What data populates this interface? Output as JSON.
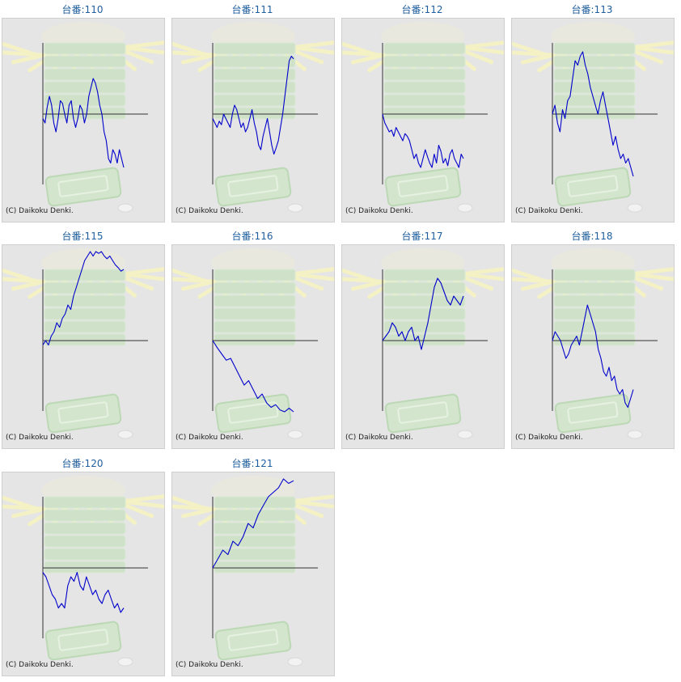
{
  "colors": {
    "title": "#1e5e9e",
    "line": "#0000cc",
    "axis": "#333333",
    "panel_bg": "#e5e5e5",
    "panel_border": "#cfcfcf"
  },
  "credit": "(C) Daikoku Denki.",
  "chart_data": [
    {
      "type": "line",
      "title": "台番:110",
      "ylim": [
        -100,
        100
      ],
      "values": [
        -5,
        -10,
        8,
        20,
        10,
        -10,
        -20,
        -5,
        15,
        12,
        0,
        -10,
        10,
        15,
        -5,
        -15,
        -5,
        10,
        5,
        -10,
        0,
        20,
        30,
        40,
        35,
        25,
        10,
        0,
        -20,
        -30,
        -50,
        -55,
        -40,
        -45,
        -55,
        -40,
        -50,
        -60
      ]
    },
    {
      "type": "line",
      "title": "台番:111",
      "ylim": [
        -100,
        100
      ],
      "values": [
        -5,
        -10,
        -15,
        -8,
        -12,
        0,
        -5,
        -10,
        -15,
        0,
        10,
        5,
        -5,
        -15,
        -10,
        -20,
        -15,
        -5,
        5,
        -10,
        -20,
        -35,
        -40,
        -25,
        -15,
        -5,
        -20,
        -35,
        -45,
        -38,
        -30,
        -15,
        0,
        20,
        40,
        60,
        65,
        62
      ]
    },
    {
      "type": "line",
      "title": "台番:112",
      "ylim": [
        -100,
        100
      ],
      "values": [
        0,
        -10,
        -15,
        -20,
        -18,
        -25,
        -15,
        -20,
        -25,
        -30,
        -22,
        -25,
        -30,
        -40,
        -50,
        -45,
        -55,
        -60,
        -50,
        -40,
        -48,
        -55,
        -60,
        -45,
        -55,
        -35,
        -42,
        -55,
        -50,
        -58,
        -45,
        -40,
        -50,
        -55,
        -60,
        -45,
        -50
      ]
    },
    {
      "type": "line",
      "title": "台番:113",
      "ylim": [
        -100,
        100
      ],
      "values": [
        0,
        10,
        -10,
        -20,
        5,
        -5,
        15,
        20,
        40,
        60,
        55,
        65,
        70,
        55,
        45,
        30,
        20,
        10,
        0,
        15,
        25,
        10,
        -5,
        -20,
        -35,
        -25,
        -40,
        -50,
        -45,
        -55,
        -50,
        -60,
        -70
      ]
    },
    {
      "type": "line",
      "title": "台番:115",
      "ylim": [
        -100,
        100
      ],
      "values": [
        -5,
        0,
        -5,
        5,
        10,
        20,
        15,
        25,
        30,
        40,
        35,
        50,
        60,
        70,
        80,
        90,
        95,
        100,
        95,
        100,
        98,
        100,
        95,
        92,
        95,
        90,
        85,
        82,
        78,
        80
      ]
    },
    {
      "type": "line",
      "title": "台番:116",
      "ylim": [
        -100,
        100
      ],
      "values": [
        0,
        -8,
        -15,
        -22,
        -20,
        -30,
        -40,
        -50,
        -45,
        -55,
        -65,
        -60,
        -70,
        -75,
        -72,
        -78,
        -80,
        -76,
        -80
      ]
    },
    {
      "type": "line",
      "title": "台番:117",
      "ylim": [
        -100,
        100
      ],
      "values": [
        0,
        5,
        10,
        20,
        15,
        5,
        10,
        0,
        10,
        15,
        0,
        5,
        -10,
        5,
        20,
        40,
        60,
        70,
        65,
        55,
        45,
        40,
        50,
        45,
        40,
        50
      ]
    },
    {
      "type": "line",
      "title": "台番:118",
      "ylim": [
        -100,
        100
      ],
      "values": [
        0,
        10,
        5,
        0,
        -10,
        -20,
        -15,
        -5,
        0,
        5,
        -5,
        10,
        25,
        40,
        30,
        20,
        10,
        -10,
        -20,
        -35,
        -40,
        -30,
        -45,
        -40,
        -55,
        -60,
        -55,
        -70,
        -75,
        -65,
        -55
      ]
    },
    {
      "type": "line",
      "title": "台番:120",
      "ylim": [
        -100,
        100
      ],
      "values": [
        -5,
        -10,
        -20,
        -30,
        -35,
        -45,
        -40,
        -45,
        -20,
        -10,
        -15,
        -5,
        -20,
        -25,
        -10,
        -20,
        -30,
        -25,
        -35,
        -40,
        -30,
        -25,
        -35,
        -45,
        -40,
        -50,
        -45
      ]
    },
    {
      "type": "line",
      "title": "台番:121",
      "ylim": [
        -100,
        100
      ],
      "values": [
        0,
        10,
        20,
        15,
        30,
        25,
        35,
        50,
        45,
        60,
        70,
        80,
        85,
        90,
        100,
        95,
        98
      ]
    }
  ]
}
